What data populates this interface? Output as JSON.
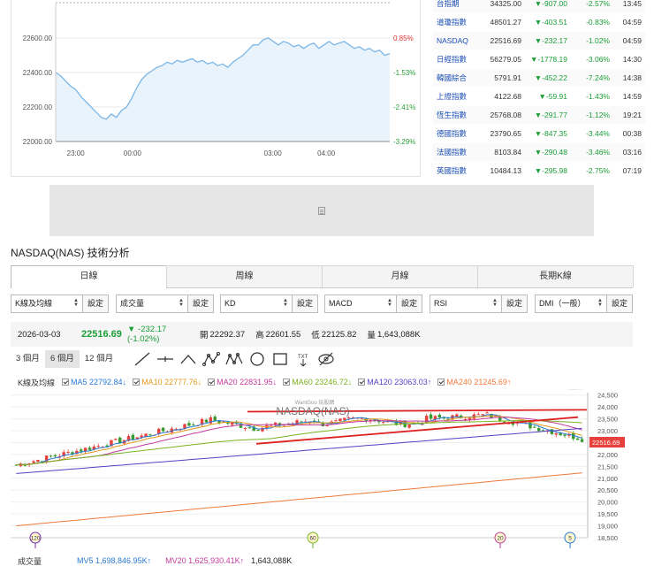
{
  "mini_chart": {
    "y_ticks": [
      "22600.00",
      "22400.00",
      "22200.00",
      "22000.00"
    ],
    "pct_ticks": [
      "0.85%",
      "-1.53%",
      "-2.41%",
      "-3.29%"
    ],
    "x_ticks": [
      "23:00",
      "00:00",
      "03:00",
      "04:00"
    ],
    "y_range": [
      22000,
      22800
    ],
    "series": [
      22400,
      22380,
      22350,
      22320,
      22300,
      22260,
      22230,
      22200,
      22170,
      22140,
      22130,
      22160,
      22140,
      22180,
      22200,
      22250,
      22310,
      22360,
      22390,
      22410,
      22430,
      22440,
      22460,
      22450,
      22470,
      22460,
      22470,
      22480,
      22460,
      22470,
      22450,
      22460,
      22440,
      22450,
      22430,
      22460,
      22480,
      22500,
      22530,
      22560,
      22560,
      22590,
      22600,
      22580,
      22560,
      22580,
      22570,
      22550,
      22560,
      22540,
      22560,
      22570,
      22540,
      22560,
      22580,
      22560,
      22570,
      22580,
      22560,
      22540,
      22550,
      22530,
      22540,
      22520,
      22530,
      22500,
      22510
    ],
    "color": "#7bb6e6"
  },
  "indices": [
    {
      "name": "台指期",
      "price": "34325.00",
      "change": "▼-907.00",
      "pct": "-2.57%",
      "time": "13:45"
    },
    {
      "name": "道瓊指數",
      "price": "48501.27",
      "change": "▼-403.51",
      "pct": "-0.83%",
      "time": "04:59"
    },
    {
      "name": "NASDAQ",
      "price": "22516.69",
      "change": "▼-232.17",
      "pct": "-1.02%",
      "time": "04:59"
    },
    {
      "name": "日經指數",
      "price": "56279.05",
      "change": "▼-1778.19",
      "pct": "-3.06%",
      "time": "14:30"
    },
    {
      "name": "韓國綜合",
      "price": "5791.91",
      "change": "▼-452.22",
      "pct": "-7.24%",
      "time": "14:38"
    },
    {
      "name": "上證指數",
      "price": "4122.68",
      "change": "▼-59.91",
      "pct": "-1.43%",
      "time": "14:59"
    },
    {
      "name": "恆生指數",
      "price": "25768.08",
      "change": "▼-291.77",
      "pct": "-1.12%",
      "time": "19:21"
    },
    {
      "name": "德國指數",
      "price": "23790.65",
      "change": "▼-847.35",
      "pct": "-3.44%",
      "time": "00:38"
    },
    {
      "name": "法國指數",
      "price": "8103.84",
      "change": "▼-290.48",
      "pct": "-3.46%",
      "time": "03:16"
    },
    {
      "name": "英國指數",
      "price": "10484.13",
      "change": "▼-295.98",
      "pct": "-2.75%",
      "time": "07:19"
    }
  ],
  "section_title": "NASDAQ(NAS) 技術分析",
  "period_tabs": [
    "日線",
    "周線",
    "月線",
    "長期K線"
  ],
  "selectors": [
    {
      "value": "K線及均線",
      "set": "設定"
    },
    {
      "value": "成交量",
      "set": "設定"
    },
    {
      "value": "KD",
      "set": "設定"
    },
    {
      "value": "MACD",
      "set": "設定"
    },
    {
      "value": "RSI",
      "set": "設定"
    },
    {
      "value": "DMI（一般）",
      "set": "設定"
    }
  ],
  "quote": {
    "date": "2026-03-03",
    "price": "22516.69",
    "change": "▼ -232.17 (-1.02%)",
    "open_label": "開",
    "open": "22292.37",
    "high_label": "高",
    "high": "22601.55",
    "low_label": "低",
    "low": "22125.82",
    "vol_label": "量",
    "vol": "1,643,088K"
  },
  "ranges": [
    "3 個月",
    "6 個月",
    "12 個月"
  ],
  "tools": [
    "line-tool-icon",
    "horizontal-line-icon",
    "wave-icon",
    "pattern-abc-icon",
    "pattern-abcd-icon",
    "circle-icon",
    "rectangle-icon",
    "text-tool-icon",
    "hide-icon"
  ],
  "ma_legend": {
    "name": "K線及均線",
    "items": [
      {
        "label": "MA5 22792.84↓",
        "color": "#2a7bd3"
      },
      {
        "label": "MA10 22777.76↓",
        "color": "#e09a1a"
      },
      {
        "label": "MA20 22831.95↓",
        "color": "#c23b9d"
      },
      {
        "label": "MA60 23246.72↓",
        "color": "#7ab320"
      },
      {
        "label": "MA120 23063.03↑",
        "color": "#5b3fc4"
      },
      {
        "label": "MA240 21245.69↑",
        "color": "#ee7a3c"
      }
    ]
  },
  "watermark": {
    "brand": "WantGoo 玩股網",
    "title": "NASDAQ(NAS)",
    "logo_text": "玩股網"
  },
  "price_axis": {
    "ticks": [
      "24,500",
      "24,000",
      "23,500",
      "23,000",
      "22,500",
      "22,000",
      "21,500",
      "21,000",
      "20,500",
      "20,000",
      "19,500",
      "19,000",
      "18,500"
    ],
    "current": "22516.69",
    "range": [
      18500,
      24600
    ]
  },
  "markers": [
    "120",
    "60",
    "20",
    "5"
  ],
  "volume_legend": {
    "name": "成交量",
    "mv5": "MV5 1,698,846.95K↑",
    "mv20": "MV20 1,625,930.41K↑",
    "vol": "1,643,088K"
  },
  "colors": {
    "up": "#d33",
    "down": "#1a9e37",
    "accent": "#1a4db3"
  }
}
